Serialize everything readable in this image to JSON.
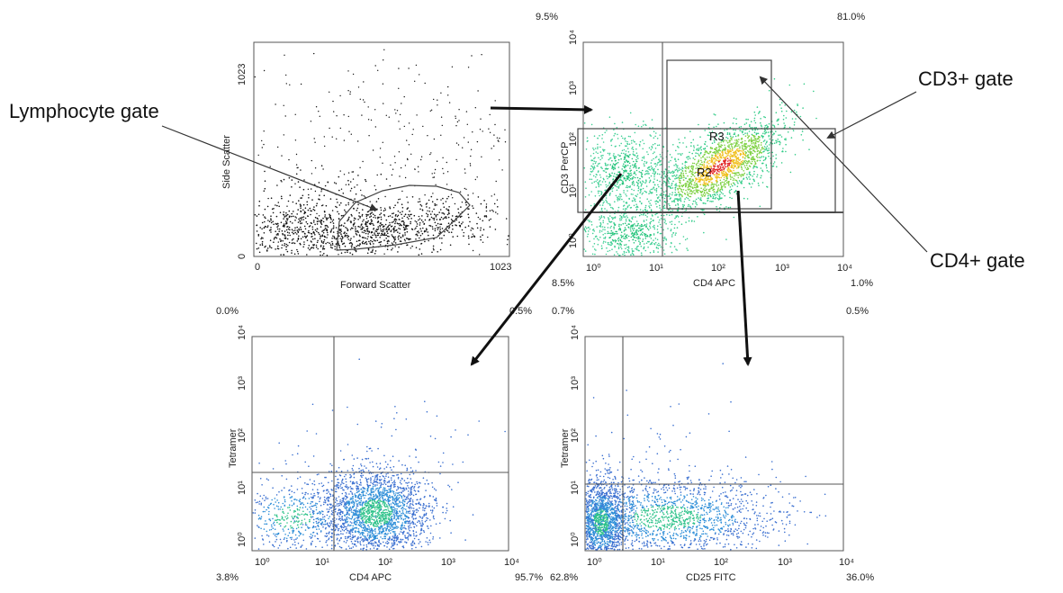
{
  "annotations": {
    "lymphocyte_gate": "Lymphocyte gate",
    "cd3_gate": "CD3+ gate",
    "cd4_gate": "CD4+ gate"
  },
  "plots": {
    "scatter": {
      "xlabel": "Forward Scatter",
      "ylabel": "Side Scatter",
      "xticks": [
        "0",
        "1023"
      ],
      "yticks": [
        "0",
        "1023"
      ]
    },
    "cd3cd4": {
      "xlabel": "CD4 APC",
      "ylabel": "CD3 PerCP",
      "xticks": [
        "10⁰",
        "10¹",
        "10²",
        "10³",
        "10⁴"
      ],
      "yticks": [
        "10⁰",
        "10¹",
        "10²",
        "10³",
        "10⁴"
      ],
      "regions": [
        "R3",
        "R2"
      ],
      "quadrants": {
        "ul": "9.5%",
        "ur": "81.0%",
        "ll": "8.5%",
        "lr": "1.0%"
      }
    },
    "tet_cd4": {
      "xlabel": "CD4 APC",
      "ylabel": "Tetramer",
      "xticks": [
        "10⁰",
        "10¹",
        "10²",
        "10³",
        "10⁴"
      ],
      "yticks": [
        "10⁰",
        "10¹",
        "10²",
        "10³",
        "10⁴"
      ],
      "quadrants": {
        "ul": "0.0%",
        "ur": "0.5%",
        "ll": "3.8%",
        "lr": "95.7%"
      }
    },
    "tet_cd25": {
      "xlabel": "CD25 FITC",
      "ylabel": "Tetramer",
      "xticks": [
        "10⁰",
        "10¹",
        "10²",
        "10³",
        "10⁴"
      ],
      "yticks": [
        "10⁰",
        "10¹",
        "10²",
        "10³",
        "10⁴"
      ],
      "quadrants": {
        "ul": "0.7%",
        "ur": "0.5%",
        "ll": "62.8%",
        "lr": "36.0%"
      }
    }
  }
}
